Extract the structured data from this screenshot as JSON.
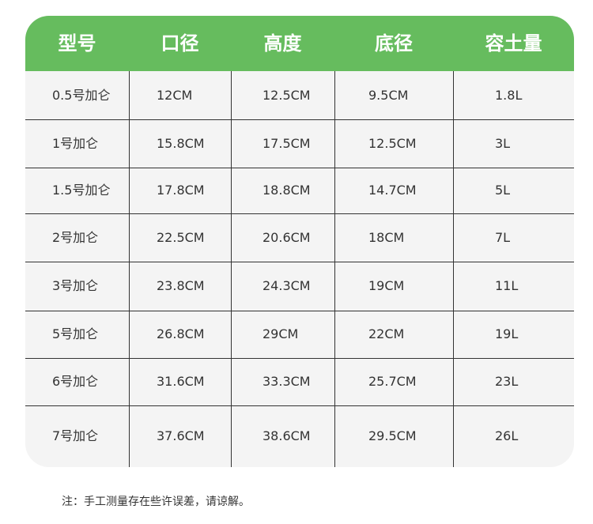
{
  "table": {
    "header": [
      "型号",
      "口径",
      "高度",
      "底径",
      "容土量"
    ],
    "rows": [
      [
        "0.5号加仑",
        "12CM",
        "12.5CM",
        "9.5CM",
        "1.8L"
      ],
      [
        "1号加仑",
        "15.8CM",
        "17.5CM",
        "12.5CM",
        "3L"
      ],
      [
        "1.5号加仑",
        "17.8CM",
        "18.8CM",
        "14.7CM",
        "5L"
      ],
      [
        "2号加仑",
        "22.5CM",
        "20.6CM",
        "18CM",
        "7L"
      ],
      [
        "3号加仑",
        "23.8CM",
        "24.3CM",
        "19CM",
        "11L"
      ],
      [
        "5号加仑",
        "26.8CM",
        "29CM",
        "22CM",
        "19L"
      ],
      [
        "6号加仑",
        "31.6CM",
        "33.3CM",
        "25.7CM",
        "23L"
      ],
      [
        "7号加仑",
        "37.6CM",
        "38.6CM",
        "29.5CM",
        "26L"
      ]
    ]
  },
  "note": "注：手工测量存在些许误差，请谅解。"
}
